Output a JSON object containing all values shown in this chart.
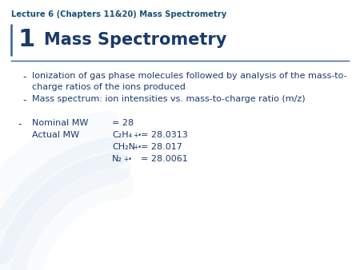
{
  "lecture_title": "Lecture 6 (Chapters 11&20) Mass Spectrometry",
  "slide_number": "1",
  "slide_title": "Mass Spectrometry",
  "bullet1_line1": "Ionization of gas phase molecules followed by analysis of the mass-to-",
  "bullet1_line2": "charge ratios of the ions produced",
  "bullet2": "Mass spectrum: ion intensities vs. mass-to-charge ratio (m/z)",
  "nominal_mw_label": "Nominal MW",
  "nominal_mw_value": "= 28",
  "actual_mw_label": "Actual MW",
  "mw_line1_formula": "C₂H₄",
  "mw_line1_super": "+•",
  "mw_line1_value": "= 28.0313",
  "mw_line2_formula": "CH₂N",
  "mw_line2_super": "+•",
  "mw_line2_value": "= 28.017",
  "mw_line3_formula": "N₂",
  "mw_line3_super": "+•",
  "mw_line3_value": "= 28.0061",
  "text_color": "#1a3a6b",
  "header_color": "#1a5276",
  "bg_color": "#FFFFFF",
  "divider_color": "#2e5fa3",
  "curve_color": "#b8cfe8"
}
